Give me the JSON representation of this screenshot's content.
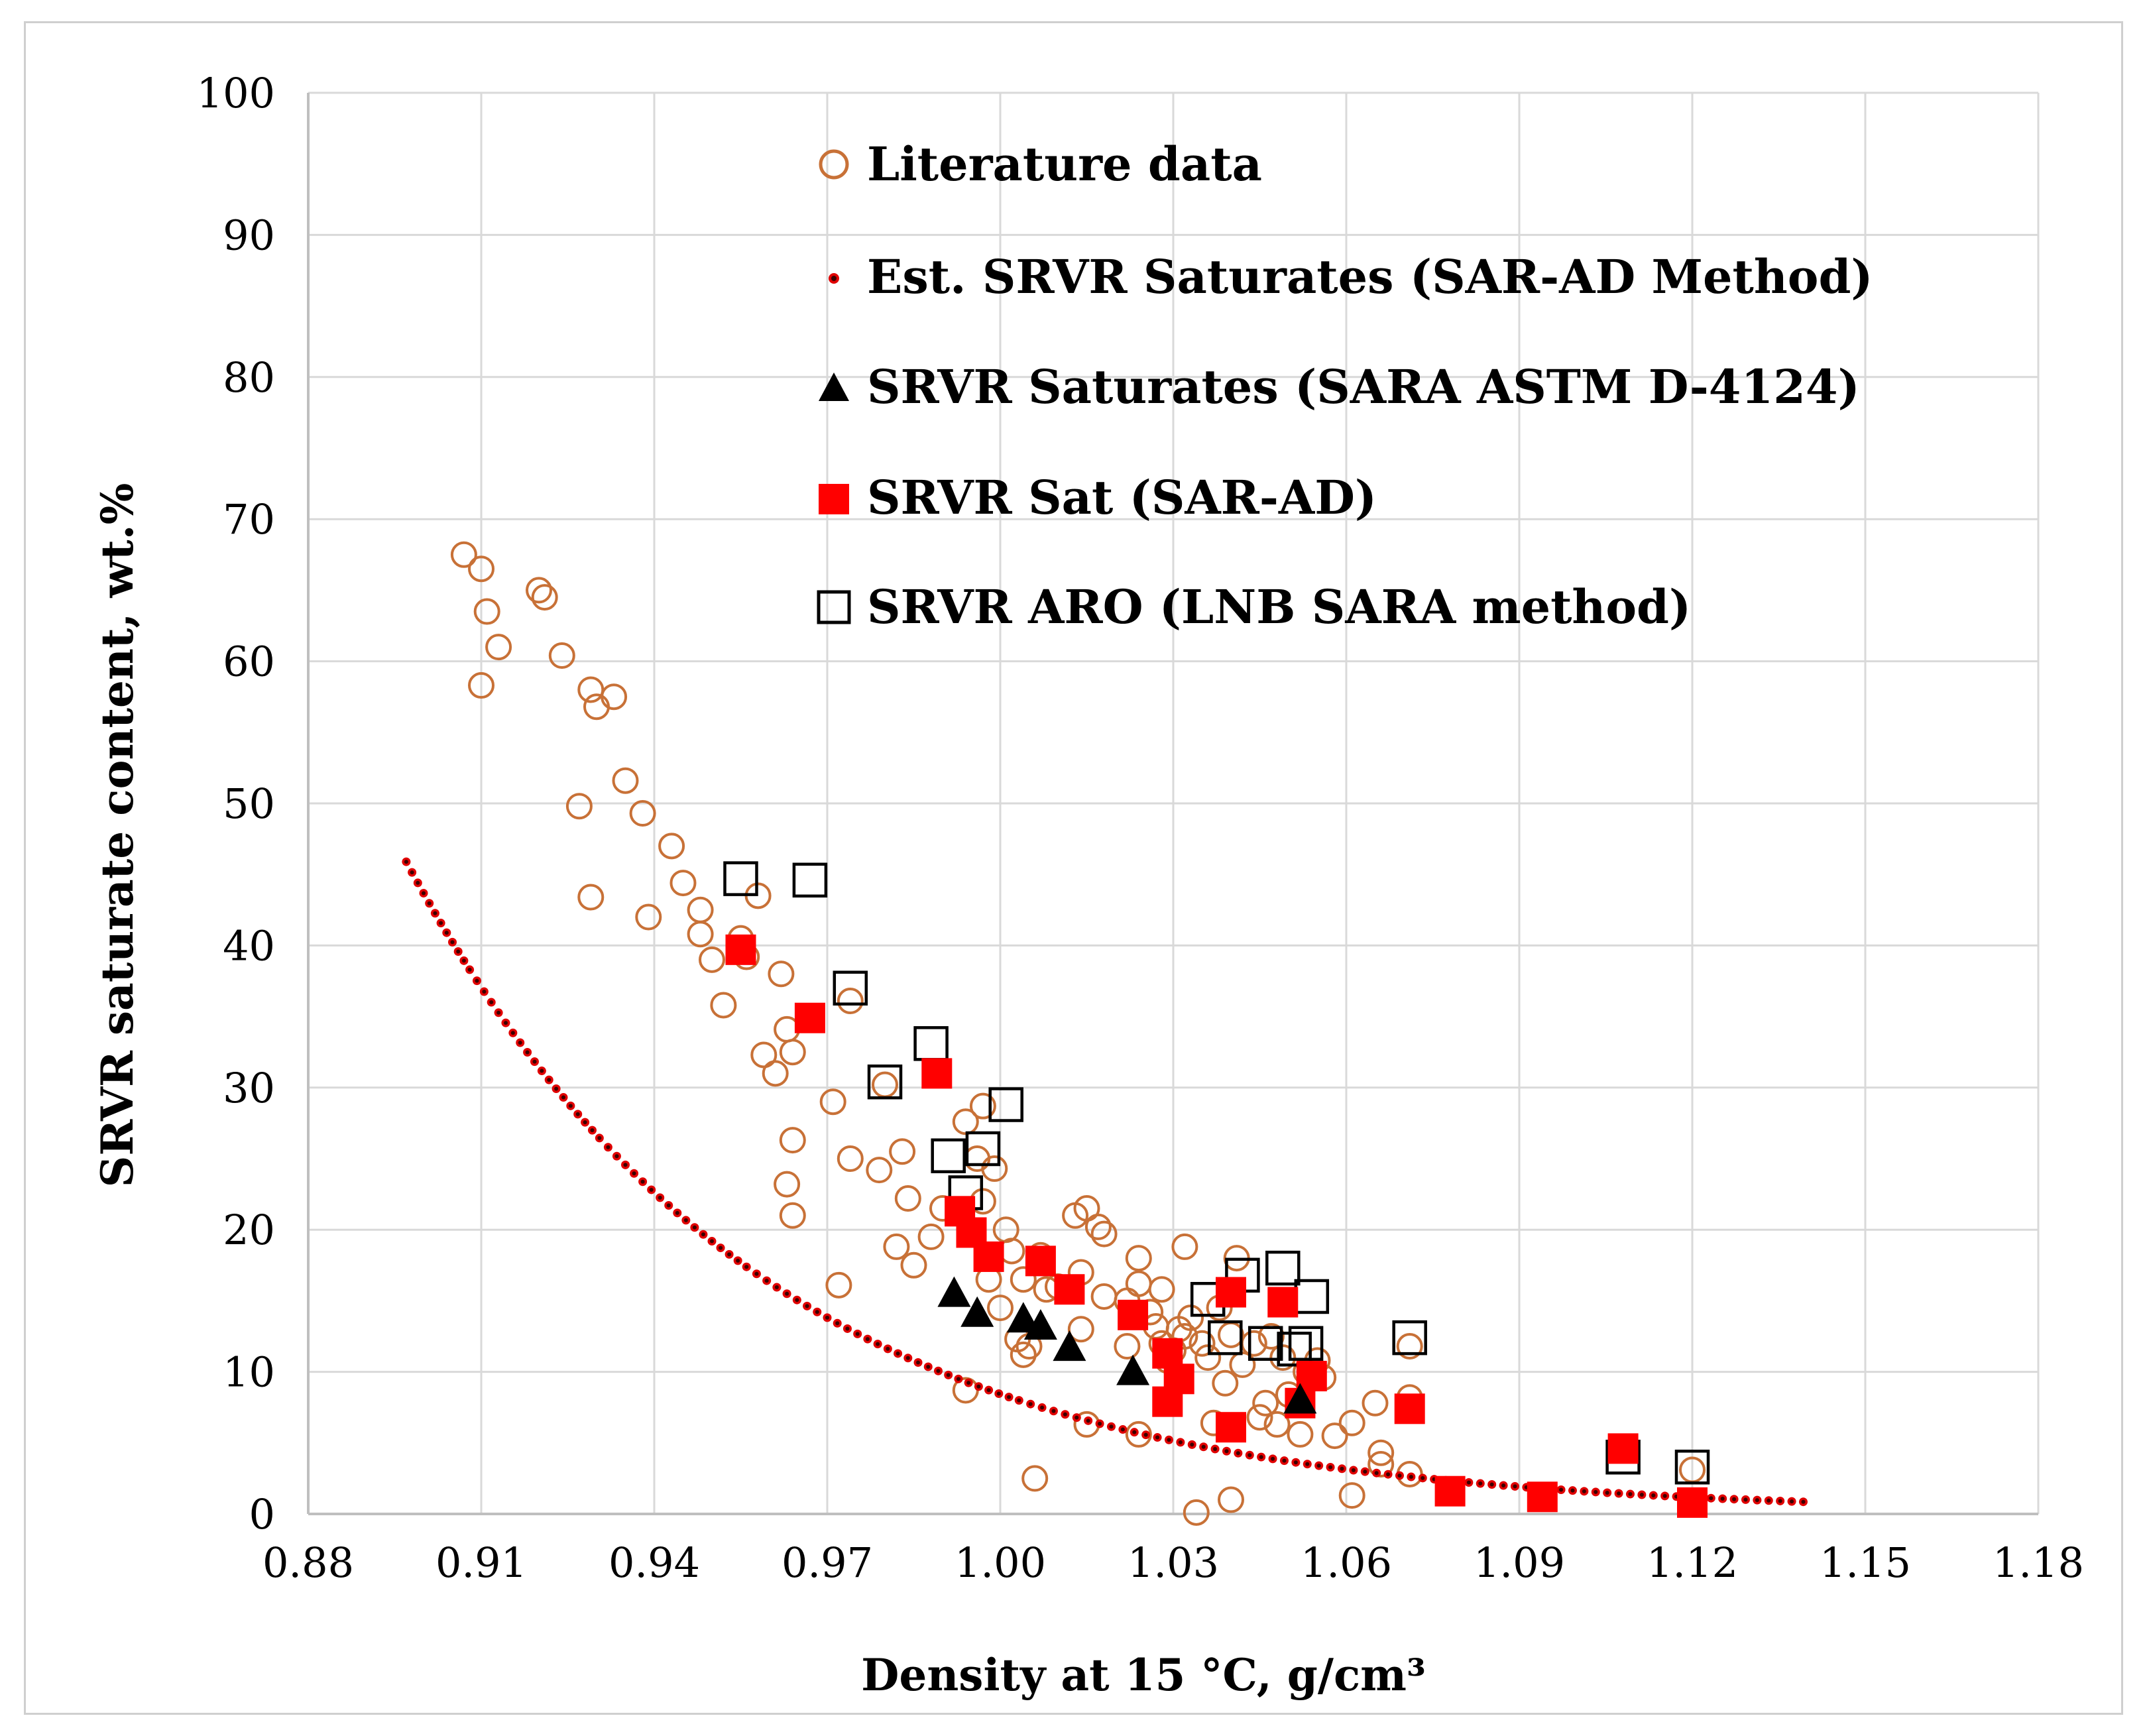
{
  "chart_data": {
    "type": "scatter",
    "title": "",
    "xlabel": "Density at 15 °C, g/cm³",
    "ylabel": "SRVR saturate content, wt.%",
    "xlim": [
      0.88,
      1.18
    ],
    "ylim": [
      0,
      100
    ],
    "grid": true,
    "x_ticks": [
      "0.88",
      "0.91",
      "0.94",
      "0.97",
      "1.00",
      "1.03",
      "1.06",
      "1.09",
      "1.12",
      "1.15",
      "1.18"
    ],
    "x_tick_values": [
      0.88,
      0.91,
      0.94,
      0.97,
      1.0,
      1.03,
      1.06,
      1.09,
      1.12,
      1.15,
      1.18
    ],
    "y_ticks": [
      "0",
      "10",
      "20",
      "30",
      "40",
      "50",
      "60",
      "70",
      "80",
      "90",
      "100"
    ],
    "y_tick_values": [
      0,
      10,
      20,
      30,
      40,
      50,
      60,
      70,
      80,
      90,
      100
    ],
    "legend_position": "top-center",
    "colors": {
      "literature": "#c87137",
      "estimate": "#e00000",
      "estimate_core": "#3a0000",
      "sara": "#000000",
      "sat": "#ff0000",
      "aro": "#000000",
      "grid": "#d9d9d9",
      "axis": "#bfbfbf"
    },
    "series": [
      {
        "name": "Literature data",
        "marker": "open-circle",
        "points": [
          [
            0.907,
            67.5
          ],
          [
            0.91,
            66.5
          ],
          [
            0.911,
            63.5
          ],
          [
            0.91,
            58.3
          ],
          [
            0.913,
            61.0
          ],
          [
            0.92,
            65.0
          ],
          [
            0.921,
            64.5
          ],
          [
            0.924,
            60.4
          ],
          [
            0.927,
            49.8
          ],
          [
            0.929,
            43.4
          ],
          [
            0.929,
            58.0
          ],
          [
            0.93,
            56.8
          ],
          [
            0.933,
            57.5
          ],
          [
            0.935,
            51.6
          ],
          [
            0.938,
            49.3
          ],
          [
            0.939,
            42.0
          ],
          [
            0.943,
            47.0
          ],
          [
            0.945,
            44.4
          ],
          [
            0.948,
            42.5
          ],
          [
            0.948,
            40.8
          ],
          [
            0.95,
            39.0
          ],
          [
            0.952,
            35.8
          ],
          [
            0.955,
            40.5
          ],
          [
            0.956,
            39.2
          ],
          [
            0.958,
            43.5
          ],
          [
            0.959,
            32.3
          ],
          [
            0.961,
            31.0
          ],
          [
            0.962,
            38.0
          ],
          [
            0.963,
            34.1
          ],
          [
            0.963,
            23.2
          ],
          [
            0.964,
            32.5
          ],
          [
            0.964,
            26.3
          ],
          [
            0.964,
            21.0
          ],
          [
            0.971,
            29.0
          ],
          [
            0.972,
            16.1
          ],
          [
            0.974,
            36.1
          ],
          [
            0.974,
            25.0
          ],
          [
            0.979,
            24.2
          ],
          [
            0.98,
            30.2
          ],
          [
            0.982,
            18.8
          ],
          [
            0.983,
            25.5
          ],
          [
            0.984,
            22.2
          ],
          [
            0.985,
            17.5
          ],
          [
            0.988,
            19.5
          ],
          [
            0.99,
            21.5
          ],
          [
            0.994,
            27.6
          ],
          [
            0.994,
            8.7
          ],
          [
            0.996,
            25.0
          ],
          [
            0.997,
            28.7
          ],
          [
            0.997,
            22.0
          ],
          [
            0.998,
            16.5
          ],
          [
            0.999,
            24.3
          ],
          [
            1.0,
            14.5
          ],
          [
            1.001,
            20.0
          ],
          [
            1.002,
            18.5
          ],
          [
            1.003,
            12.3
          ],
          [
            1.004,
            11.2
          ],
          [
            1.004,
            16.5
          ],
          [
            1.005,
            11.8
          ],
          [
            1.006,
            2.5
          ],
          [
            1.007,
            18.2
          ],
          [
            1.008,
            15.8
          ],
          [
            1.01,
            16.0
          ],
          [
            1.013,
            21.0
          ],
          [
            1.014,
            17.0
          ],
          [
            1.014,
            13.0
          ],
          [
            1.015,
            21.5
          ],
          [
            1.015,
            6.3
          ],
          [
            1.017,
            20.2
          ],
          [
            1.018,
            19.7
          ],
          [
            1.018,
            15.3
          ],
          [
            1.022,
            11.8
          ],
          [
            1.022,
            15.0
          ],
          [
            1.024,
            16.2
          ],
          [
            1.024,
            18.0
          ],
          [
            1.024,
            5.6
          ],
          [
            1.026,
            14.2
          ],
          [
            1.027,
            13.2
          ],
          [
            1.028,
            15.8
          ],
          [
            1.028,
            12.0
          ],
          [
            1.029,
            10.8
          ],
          [
            1.03,
            11.5
          ],
          [
            1.031,
            13.0
          ],
          [
            1.032,
            12.5
          ],
          [
            1.032,
            18.8
          ],
          [
            1.033,
            13.8
          ],
          [
            1.034,
            0.1
          ],
          [
            1.035,
            12.0
          ],
          [
            1.036,
            11.0
          ],
          [
            1.037,
            6.4
          ],
          [
            1.038,
            14.5
          ],
          [
            1.039,
            9.2
          ],
          [
            1.04,
            12.6
          ],
          [
            1.04,
            1.0
          ],
          [
            1.041,
            18.0
          ],
          [
            1.042,
            10.5
          ],
          [
            1.044,
            12.0
          ],
          [
            1.045,
            6.8
          ],
          [
            1.046,
            7.8
          ],
          [
            1.047,
            12.5
          ],
          [
            1.048,
            6.3
          ],
          [
            1.049,
            11.0
          ],
          [
            1.05,
            8.4
          ],
          [
            1.052,
            5.6
          ],
          [
            1.053,
            10.0
          ],
          [
            1.055,
            10.8
          ],
          [
            1.056,
            9.6
          ],
          [
            1.058,
            5.5
          ],
          [
            1.061,
            1.3
          ],
          [
            1.061,
            6.4
          ],
          [
            1.065,
            7.8
          ],
          [
            1.066,
            3.5
          ],
          [
            1.066,
            4.3
          ],
          [
            1.071,
            8.2
          ],
          [
            1.071,
            2.8
          ],
          [
            1.071,
            11.8
          ],
          [
            1.12,
            3.1
          ]
        ]
      },
      {
        "name": "Est. SRVR Saturates (SAR-AD Method)",
        "marker": "dot-curve",
        "equation": "y = 1.175e8 * exp(-16.45 * x)",
        "x_range": [
          0.897,
          1.14
        ]
      },
      {
        "name": "SRVR Saturates (SARA ASTM D-4124)",
        "marker": "filled-triangle",
        "points": [
          [
            0.992,
            15.5
          ],
          [
            0.996,
            14.1
          ],
          [
            1.004,
            13.7
          ],
          [
            1.007,
            13.2
          ],
          [
            1.012,
            11.7
          ],
          [
            1.023,
            10.0
          ],
          [
            1.052,
            8.0
          ]
        ]
      },
      {
        "name": "SRVR Sat (SAR-AD)",
        "marker": "filled-square",
        "points": [
          [
            0.955,
            39.7
          ],
          [
            0.967,
            34.9
          ],
          [
            0.989,
            31.0
          ],
          [
            0.993,
            21.3
          ],
          [
            0.995,
            19.8
          ],
          [
            0.998,
            18.1
          ],
          [
            1.007,
            17.8
          ],
          [
            1.012,
            15.8
          ],
          [
            1.023,
            14.0
          ],
          [
            1.029,
            7.9
          ],
          [
            1.029,
            11.3
          ],
          [
            1.031,
            9.5
          ],
          [
            1.04,
            15.6
          ],
          [
            1.04,
            6.1
          ],
          [
            1.049,
            14.9
          ],
          [
            1.052,
            7.8
          ],
          [
            1.054,
            9.7
          ],
          [
            1.071,
            7.4
          ],
          [
            1.078,
            1.6
          ],
          [
            1.094,
            1.2
          ],
          [
            1.108,
            4.6
          ],
          [
            1.12,
            0.8
          ]
        ]
      },
      {
        "name": "SRVR ARO (LNB SARA method)",
        "marker": "open-square",
        "points": [
          [
            0.955,
            44.7
          ],
          [
            0.967,
            44.6
          ],
          [
            0.974,
            37.0
          ],
          [
            0.98,
            30.4
          ],
          [
            0.988,
            33.1
          ],
          [
            0.991,
            25.2
          ],
          [
            0.994,
            22.6
          ],
          [
            0.997,
            25.7
          ],
          [
            1.001,
            28.8
          ],
          [
            1.036,
            15.1
          ],
          [
            1.039,
            12.4
          ],
          [
            1.042,
            16.8
          ],
          [
            1.046,
            12.0
          ],
          [
            1.049,
            17.3
          ],
          [
            1.051,
            11.6
          ],
          [
            1.053,
            12.0
          ],
          [
            1.054,
            15.3
          ],
          [
            1.071,
            12.4
          ],
          [
            1.108,
            4.0
          ],
          [
            1.12,
            3.3
          ]
        ]
      }
    ]
  }
}
